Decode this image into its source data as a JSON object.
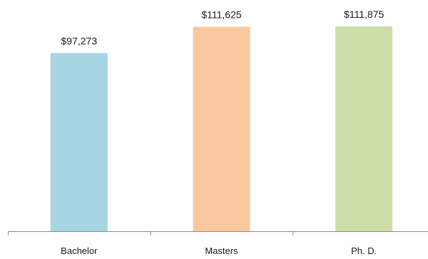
{
  "chart_data": {
    "type": "bar",
    "categories": [
      "Bachelor",
      "Masters",
      "Ph. D."
    ],
    "values": [
      97273,
      111625,
      111875
    ],
    "data_labels": [
      "$97,273",
      "$111,625",
      "$111,875"
    ],
    "colors": [
      "#a6d5e3",
      "#f9c89e",
      "#cddea8"
    ],
    "ylim": [
      0,
      111875
    ],
    "title": "",
    "xlabel": "",
    "ylabel": "",
    "grid": false,
    "legend": "none"
  }
}
